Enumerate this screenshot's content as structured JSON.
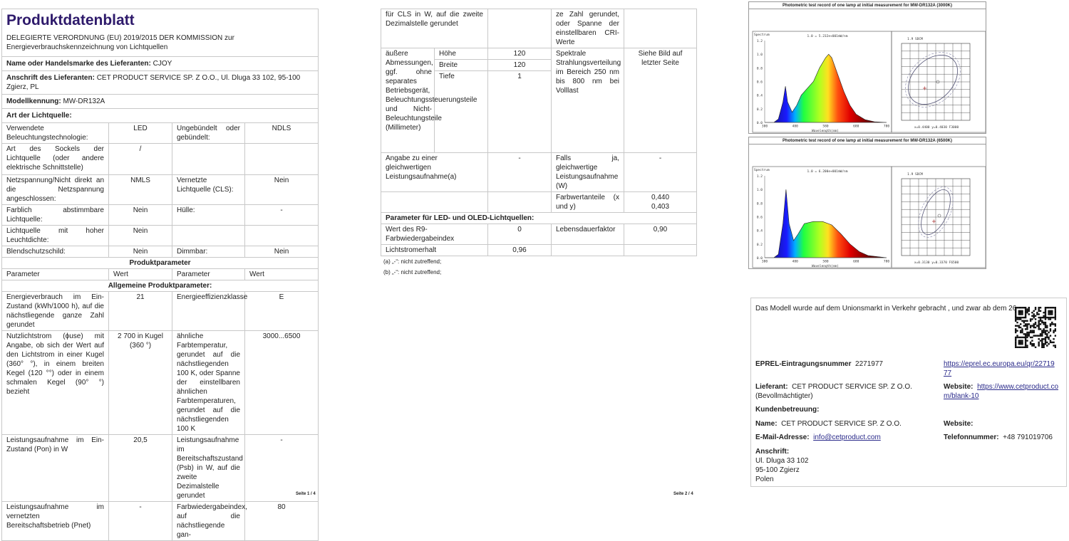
{
  "page1": {
    "title": "Produktdatenblatt",
    "regulation": "DELEGIERTE VERORDNUNG (EU) 2019/2015 DER KOMMISSION zur Energieverbrauchskennzeichnung von Lichtquellen",
    "supplier_label": "Name oder Handelsmarke des Lieferanten:",
    "supplier": "CJOY",
    "address_label": "Anschrift des Lieferanten:",
    "address": "CET PRODUCT SERVICE SP. Z O.O., Ul. Dluga 33 102, 95-100 Zgierz, PL",
    "model_label": "Modellkennung:",
    "model": "MW-DR132A",
    "type_heading": "Art der Lichtquelle:",
    "type_rows": [
      [
        "Verwendete Beleuchtungstechnologie:",
        "LED",
        "Ungebündelt oder gebündelt:",
        "NDLS"
      ],
      [
        "Art des Sockels der Lichtquelle (oder andere elektrische Schnittstelle)",
        "/",
        "",
        ""
      ],
      [
        "Netzspannung/Nicht direkt an die Netzspannung angeschlossen:",
        "NMLS",
        "Vernetzte Lichtquelle (CLS):",
        "Nein"
      ],
      [
        "Farblich abstimmbare Lichtquelle:",
        "Nein",
        "Hülle:",
        "-"
      ],
      [
        "Lichtquelle mit hoher Leuchtdichte:",
        "Nein",
        "",
        ""
      ],
      [
        "Blendschutzschild:",
        "Nein",
        "Dimmbar:",
        "Nein"
      ]
    ],
    "params_heading": "Produktparameter",
    "col_headers": [
      "Parameter",
      "Wert",
      "Parameter",
      "Wert"
    ],
    "general_heading": "Allgemeine Produktparameter:",
    "param_rows": [
      [
        "Energieverbrauch im Ein-Zustand (kWh/1000 h), auf die nächstliegende ganze Zahl gerundet",
        "21",
        "Energieeffizienzklasse",
        "E"
      ],
      [
        "Nutzlichtstrom (ϕuse) mit Angabe, ob sich der Wert auf den Lichtstrom in einer Kugel (360° °), in einem breiten Kegel (120 °°) oder in einem schmalen Kegel (90° °) bezieht",
        "2 700 in Kugel (360 °)",
        "ähnliche Farbtemperatur, gerundet auf die nächstliegenden 100 K, oder Spanne der einstellbaren ähnlichen Farbtemperaturen, gerundet auf die nächstliegenden 100 K",
        "3000...6500"
      ],
      [
        "Leistungsaufnahme im Ein-Zustand (Pon) in W",
        "20,5",
        "Leistungsaufnahme im Bereitschaftszustand (Psb) in W, auf die zweite Dezimalstelle gerundet",
        "-"
      ],
      [
        "Leistungsaufnahme im vernetzten Bereitschaftsbetrieb (Pnet)",
        "-",
        "Farbwiedergabeindex, auf die nächstliegende gan-",
        "80"
      ]
    ],
    "page_label": "Seite 1 / 4"
  },
  "page2": {
    "cont_row": [
      "für CLS in W, auf die zweite Dezimalstelle gerundet",
      "",
      "ze Zahl gerundet, oder Spanne der einstellbaren CRI-Werte",
      ""
    ],
    "dims_label": "äußere Abmessungen, ggf. ohne separates Betriebsgerät, Beleuchtungssteuerungsteile und Nicht-Beleuchtungsteile (Millimeter)",
    "dims": [
      [
        "Höhe",
        "120"
      ],
      [
        "Breite",
        "120"
      ],
      [
        "Tiefe",
        "1"
      ]
    ],
    "spectral_label": "Spektrale Strahlungsverteilung im Bereich 250 nm bis 800 nm bei Volllast",
    "spectral_value": "Siehe Bild auf letzter Seite",
    "equiv_row": [
      "Angabe zu einer gleichwertigen Leistungsaufnahme(a)",
      "-",
      "Falls ja, gleichwertige Leistungsaufnahme (W)",
      "-"
    ],
    "chroma_label": "Farbwertanteile (x und y)",
    "chroma_x": "0,440",
    "chroma_y": "0,403",
    "led_heading": "Parameter für LED- und OLED-Lichtquellen:",
    "led_rows": [
      [
        "Wert des R9-Farbwiedergabeindex",
        "0",
        "Lebensdauerfaktor",
        "0,90"
      ],
      [
        "Lichtstromerhalt",
        "0,96",
        "",
        ""
      ]
    ],
    "footnotes": [
      "(a) „-“: nicht zutreffend;",
      "(b) „-“: nicht zutreffend;"
    ],
    "page_label": "Seite 2 / 4"
  },
  "photometric": [
    {
      "title": "Photometric test record of one lamp at initial measurement for MW-DR132A (3000K)",
      "y_label": "Spectrum",
      "scale": "1.0 = 5.232e+001mW/nm",
      "x_label": "Wavelength(nm)",
      "x_ticks": [
        "380",
        "480",
        "580",
        "680",
        "780"
      ],
      "y_ticks": [
        "0.0",
        "0.2",
        "0.4",
        "0.6",
        "0.8",
        "1.0",
        "1.2"
      ],
      "sdcm": "1.9 SDCM",
      "coords": "x=0.4400 y=0.4030 F3000"
    },
    {
      "title": "Photometric test record of one lamp at initial measurement for MW-DR132A (6500K)",
      "y_label": "Spectrum",
      "scale": "1.0 = 6.200e+001mW/nm",
      "x_label": "Wavelength(nm)",
      "x_ticks": [
        "380",
        "480",
        "580",
        "680",
        "780"
      ],
      "y_ticks": [
        "0.0",
        "0.2",
        "0.4",
        "0.6",
        "0.8",
        "1.0",
        "1.2"
      ],
      "sdcm": "1.9 SDCM",
      "coords": "x=0.3130 y=0.3370 F6500"
    }
  ],
  "info": {
    "market_text": "Das Modell wurde auf dem Unionsmarkt in Verkehr gebracht , und zwar ab dem 26",
    "eprel_label": "EPREL-Eintragungsnummer",
    "eprel": "2271977",
    "eprel_url": "https://eprel.ec.europa.eu/qr/2271977",
    "supplier_label": "Lieferant:",
    "supplier": "CET PRODUCT SERVICE SP. Z O.O. (Bevollmächtigter)",
    "website_label": "Website:",
    "website": "https://www.cetproduct.com/blank-10",
    "customer_heading": "Kundenbetreuung:",
    "name_label": "Name:",
    "name": "CET PRODUCT SERVICE SP. Z O.O.",
    "website2_label": "Website:",
    "email_label": "E-Mail-Adresse:",
    "email": "info@cetproduct.com",
    "phone_label": "Telefonnummer:",
    "phone": "+48 791019706",
    "address_label": "Anschrift:",
    "address_lines": [
      "Ul. Dluga 33 102",
      "95-100 Zgierz",
      "Polen"
    ]
  }
}
